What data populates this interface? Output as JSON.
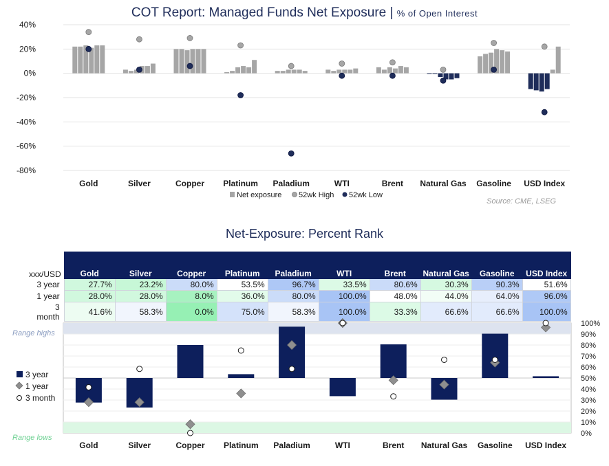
{
  "chart_data": [
    {
      "type": "bar",
      "title": "COT Report: Managed Funds Net Exposure",
      "subtitle": "% of Open Interest",
      "categories": [
        "Gold",
        "Silver",
        "Copper",
        "Platinum",
        "Paladium",
        "WTI",
        "Brent",
        "Natural Gas",
        "Gasoline",
        "USD Index"
      ],
      "ylim": [
        -80,
        40
      ],
      "yticks": [
        40,
        20,
        0,
        -20,
        -40,
        -60,
        -80
      ],
      "ytick_labels": [
        "40%",
        "20%",
        "0%",
        "-20%",
        "-40%",
        "-60%",
        "-80%"
      ],
      "series": [
        {
          "name": "Net exposure",
          "values": [
            [
              22,
              22,
              23,
              21,
              23,
              23
            ],
            [
              3,
              2,
              3,
              6,
              6,
              8
            ],
            [
              20,
              20,
              19,
              20,
              20,
              20
            ],
            [
              1,
              2,
              5,
              6,
              5,
              11
            ],
            [
              2,
              2,
              3,
              3,
              3,
              2
            ],
            [
              3,
              2,
              3,
              3,
              3,
              4
            ],
            [
              5,
              3,
              5,
              4,
              6,
              5
            ],
            [
              -0.5,
              -0.5,
              -3,
              -5,
              -5,
              -4
            ],
            [
              14,
              16,
              17,
              20,
              19,
              18
            ],
            [
              -13,
              -14,
              -15,
              -13,
              3,
              22
            ]
          ]
        },
        {
          "name": "52wk High",
          "values": [
            34,
            28,
            29,
            23,
            6,
            8,
            9,
            3,
            25,
            22
          ]
        },
        {
          "name": "52wk Low",
          "values": [
            20,
            3,
            6,
            -18,
            -66,
            -2,
            -2,
            -6,
            3,
            -32
          ]
        }
      ],
      "legend": [
        "Net exposure",
        "52wk High",
        "52wk Low"
      ],
      "colors": {
        "bar": "#a6a6a6",
        "high": "#a6a6a6",
        "low": "#1f2d5a"
      },
      "source": "Source: CME, LSEG"
    },
    {
      "type": "bar",
      "title": "Net-Exposure: Percent Rank",
      "categories": [
        "Gold",
        "Silver",
        "Copper",
        "Platinum",
        "Paladium",
        "WTI",
        "Brent",
        "Natural Gas",
        "Gasoline",
        "USD Index"
      ],
      "ylim": [
        0,
        100
      ],
      "yticks": [
        100,
        90,
        80,
        70,
        60,
        50,
        40,
        30,
        20,
        10,
        0
      ],
      "ytick_labels": [
        "100%",
        "90%",
        "80%",
        "70%",
        "60%",
        "50%",
        "40%",
        "30%",
        "20%",
        "10%",
        "0%"
      ],
      "baseline": 50,
      "series": [
        {
          "name": "3 year",
          "values": [
            27.7,
            23.2,
            80.0,
            53.5,
            96.7,
            33.5,
            80.6,
            30.3,
            90.3,
            51.6
          ]
        },
        {
          "name": "1 year",
          "values": [
            28.0,
            28.0,
            8.0,
            36.0,
            80.0,
            100.0,
            48.0,
            44.0,
            64.0,
            96.0
          ]
        },
        {
          "name": "3 month",
          "values": [
            41.6,
            58.3,
            0.0,
            75.0,
            58.3,
            100.0,
            33.3,
            66.6,
            66.6,
            100.0
          ]
        }
      ],
      "range_highs_label": "Range highs",
      "range_lows_label": "Range lows",
      "legend": [
        "3 year",
        "1 year",
        "3 month"
      ],
      "colors": {
        "bar": "#0d1f5c",
        "high_band": "#dde3ef",
        "low_band": "#dcf7e4"
      }
    }
  ],
  "titles": {
    "top_main": "COT Report: Managed Funds Net Exposure",
    "top_sep": " | ",
    "top_sub": "% of Open Interest",
    "bottom": "Net-Exposure: Percent Rank"
  },
  "table": {
    "corner": "xxx/USD",
    "headers": [
      "Gold",
      "Silver",
      "Copper",
      "Platinum",
      "Paladium",
      "WTI",
      "Brent",
      "Natural Gas",
      "Gasoline",
      "USD Index"
    ],
    "rows": [
      {
        "label": "3 year",
        "cells": [
          "27.7%",
          "23.2%",
          "80.0%",
          "53.5%",
          "96.7%",
          "33.5%",
          "80.6%",
          "30.3%",
          "90.3%",
          "51.6%"
        ]
      },
      {
        "label": "1 year",
        "cells": [
          "28.0%",
          "28.0%",
          "8.0%",
          "36.0%",
          "80.0%",
          "100.0%",
          "48.0%",
          "44.0%",
          "64.0%",
          "96.0%"
        ]
      },
      {
        "label": "3 month",
        "cells": [
          "41.6%",
          "58.3%",
          "0.0%",
          "75.0%",
          "58.3%",
          "100.0%",
          "33.3%",
          "66.6%",
          "66.6%",
          "100.0%"
        ]
      }
    ]
  }
}
